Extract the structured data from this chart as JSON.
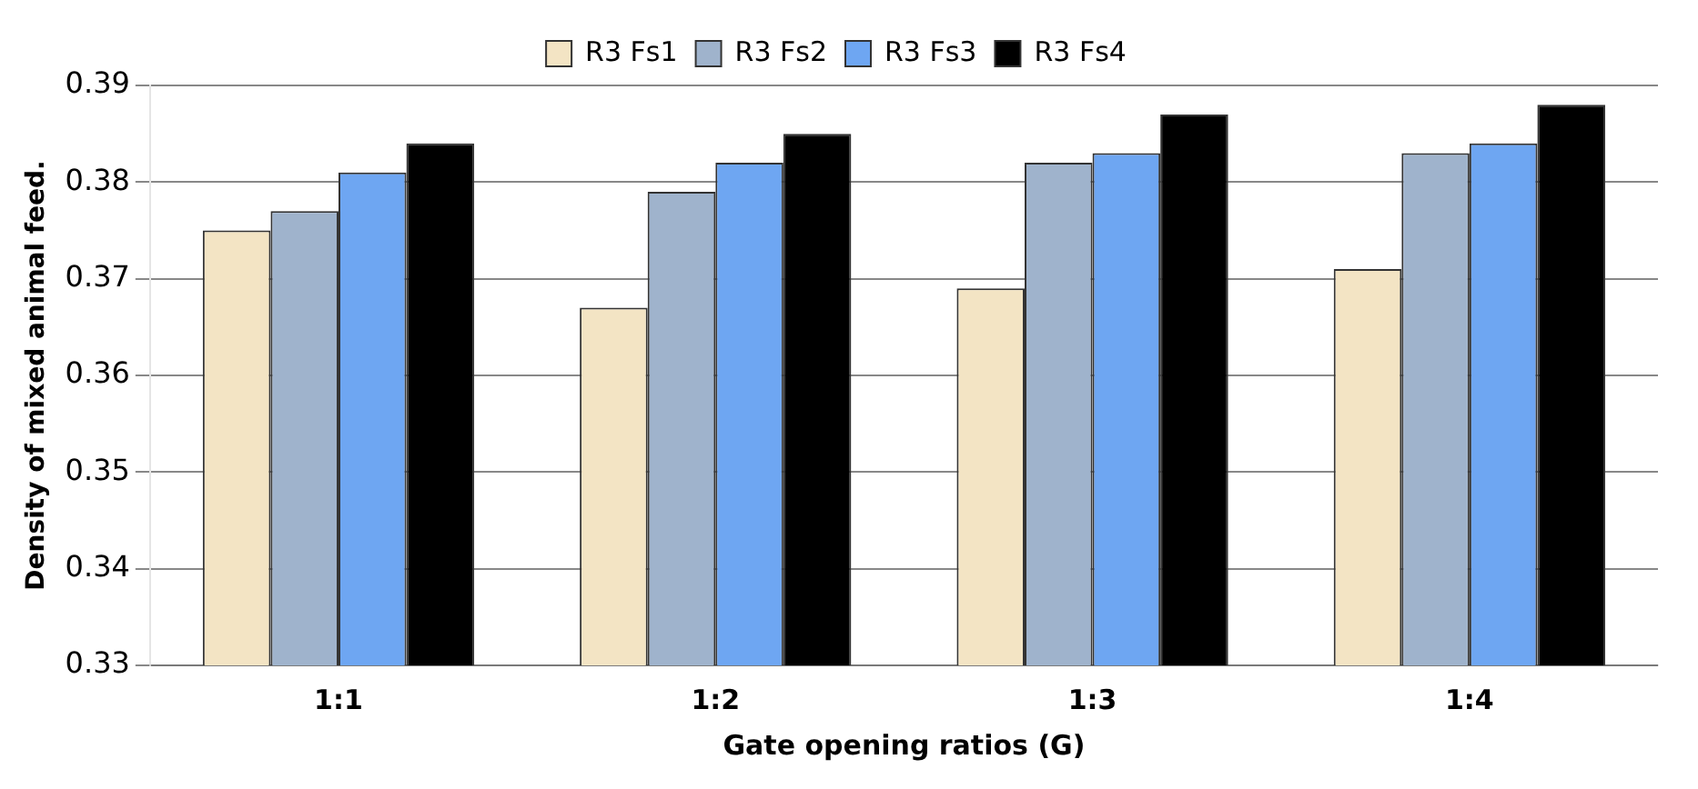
{
  "chart_data": {
    "type": "bar",
    "xlabel": "Gate opening ratios (G)",
    "ylabel": "Density of mixed animal feed.",
    "categories": [
      "1:1",
      "1:2",
      "1:3",
      "1:4"
    ],
    "series": [
      {
        "name": "R3 Fs1",
        "color": "#f3e4c4",
        "values": [
          0.375,
          0.367,
          0.369,
          0.371
        ]
      },
      {
        "name": "R3 Fs2",
        "color": "#9fb3cc",
        "values": [
          0.377,
          0.379,
          0.382,
          0.383
        ]
      },
      {
        "name": "R3 Fs3",
        "color": "#6ea6f2",
        "values": [
          0.381,
          0.382,
          0.383,
          0.384
        ]
      },
      {
        "name": "R3 Fs4",
        "color": "#000000",
        "values": [
          0.384,
          0.385,
          0.387,
          0.388
        ]
      }
    ],
    "ylim": [
      0.33,
      0.39
    ],
    "yticks": [
      0.33,
      0.34,
      0.35,
      0.36,
      0.37,
      0.38,
      0.39
    ],
    "grid": "y",
    "legend": "top"
  }
}
